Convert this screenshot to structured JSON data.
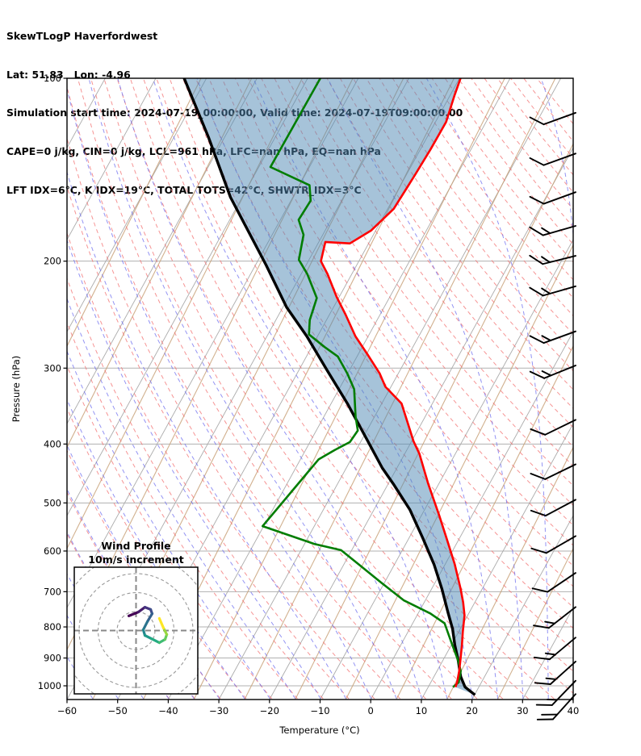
{
  "header": {
    "title": "SkewTLogP Haverfordwest",
    "lat_lon": "Lat: 51.83   Lon: -4.96",
    "times": "Simulation start time: 2024-07-19_00:00:00, Valid time: 2024-07-19T09:00:00.00",
    "indices1": "CAPE=0 j/kg, CIN=0 j/kg, LCL=961 hPa, LFC=nan hPa, EQ=nan hPa",
    "indices2": "LFT IDX=6°C, K IDX=19°C, TOTAL TOTS=42°C, SHWTR_IDX=3°C"
  },
  "chart_data": {
    "type": "skewt-logp",
    "station": "Haverfordwest",
    "xlabel": "Temperature (°C)",
    "ylabel": "Pressure (hPa)",
    "x_tick_labels": [
      "−60",
      "−50",
      "−40",
      "−30",
      "−20",
      "−10",
      "0",
      "10",
      "20",
      "30",
      "40"
    ],
    "x_tick_values": [
      -60,
      -50,
      -40,
      -30,
      -20,
      -10,
      0,
      10,
      20,
      30,
      40
    ],
    "y_tick_values": [
      100,
      200,
      300,
      400,
      500,
      600,
      700,
      800,
      900,
      1000
    ],
    "x_range_c": [
      -60,
      40
    ],
    "p_range_hpa": [
      100,
      1053
    ],
    "grid": {
      "isotherm_step_c": 10,
      "dry_adiabat_theta_k": {
        "start": 230,
        "end": 460,
        "step": 5
      },
      "moist_adiabat_t0_c": {
        "start": -60,
        "end": 45,
        "step": 5
      },
      "mixing_line_count": 13
    },
    "temperature_profile": [
      [
        100,
        -49.8
      ],
      [
        107,
        -49.1
      ],
      [
        118,
        -47.9
      ],
      [
        131,
        -48.0
      ],
      [
        145,
        -48.3
      ],
      [
        164,
        -48.8
      ],
      [
        178,
        -50.9
      ],
      [
        187,
        -53.7
      ],
      [
        186,
        -58.7
      ],
      [
        200,
        -57.5
      ],
      [
        210,
        -54.8
      ],
      [
        229,
        -50.5
      ],
      [
        245,
        -46.8
      ],
      [
        266,
        -42.5
      ],
      [
        285,
        -38.1
      ],
      [
        306,
        -33.7
      ],
      [
        322,
        -31.1
      ],
      [
        343,
        -26.1
      ],
      [
        396,
        -19.6
      ],
      [
        415,
        -17.1
      ],
      [
        465,
        -12.1
      ],
      [
        524,
        -6.5
      ],
      [
        571,
        -2.6
      ],
      [
        631,
        1.9
      ],
      [
        692,
        5.7
      ],
      [
        729,
        7.7
      ],
      [
        766,
        9.4
      ],
      [
        814,
        10.8
      ],
      [
        857,
        12.1
      ],
      [
        902,
        13.3
      ],
      [
        946,
        14.4
      ],
      [
        987,
        15.2
      ],
      [
        1005,
        15.4
      ]
    ],
    "dewpoint_profile": [
      [
        100,
        -77.5
      ],
      [
        140,
        -77.7
      ],
      [
        150,
        -68.0
      ],
      [
        159,
        -66.1
      ],
      [
        171,
        -66.4
      ],
      [
        181,
        -63.8
      ],
      [
        199,
        -62.0
      ],
      [
        210,
        -58.8
      ],
      [
        230,
        -54.3
      ],
      [
        250,
        -53.3
      ],
      [
        264,
        -51.9
      ],
      [
        277,
        -47.4
      ],
      [
        287,
        -43.8
      ],
      [
        306,
        -40.1
      ],
      [
        325,
        -37.0
      ],
      [
        361,
        -33.7
      ],
      [
        380,
        -31.8
      ],
      [
        397,
        -32.1
      ],
      [
        409,
        -34.2
      ],
      [
        424,
        -36.4
      ],
      [
        546,
        -40.2
      ],
      [
        584,
        -28.1
      ],
      [
        598,
        -22.1
      ],
      [
        631,
        -17.1
      ],
      [
        676,
        -10.7
      ],
      [
        723,
        -4.3
      ],
      [
        760,
        2.4
      ],
      [
        789,
        6.3
      ],
      [
        857,
        10.2
      ],
      [
        910,
        13.1
      ],
      [
        946,
        14.7
      ],
      [
        987,
        15.5
      ],
      [
        1005,
        14.9
      ]
    ],
    "parcel_profile": [
      [
        100,
        -104.4
      ],
      [
        125,
        -93.2
      ],
      [
        157,
        -82.3
      ],
      [
        203,
        -67.9
      ],
      [
        238,
        -59.3
      ],
      [
        266,
        -52.1
      ],
      [
        303,
        -44.3
      ],
      [
        343,
        -36.8
      ],
      [
        394,
        -28.9
      ],
      [
        438,
        -22.9
      ],
      [
        465,
        -19.0
      ],
      [
        513,
        -12.9
      ],
      [
        571,
        -7.3
      ],
      [
        631,
        -2.2
      ],
      [
        692,
        2.0
      ],
      [
        759,
        5.9
      ],
      [
        806,
        8.5
      ],
      [
        857,
        10.7
      ],
      [
        910,
        13.1
      ],
      [
        966,
        15.3
      ],
      [
        1005,
        17.3
      ],
      [
        1035,
        20.1
      ]
    ],
    "wind_barbs": [
      {
        "p": 114,
        "full": 1,
        "half": 0,
        "angle": 20
      },
      {
        "p": 133,
        "full": 1,
        "half": 0,
        "angle": 20
      },
      {
        "p": 154,
        "full": 1,
        "half": 0,
        "angle": 20
      },
      {
        "p": 175,
        "full": 1,
        "half": 1,
        "angle": 16
      },
      {
        "p": 196,
        "full": 1,
        "half": 1,
        "angle": 14
      },
      {
        "p": 220,
        "full": 1,
        "half": 1,
        "angle": 16
      },
      {
        "p": 261,
        "full": 1,
        "half": 1,
        "angle": 20
      },
      {
        "p": 297,
        "full": 1,
        "half": 1,
        "angle": 22
      },
      {
        "p": 365,
        "full": 1,
        "half": 0,
        "angle": 26
      },
      {
        "p": 432,
        "full": 1,
        "half": 0,
        "angle": 26
      },
      {
        "p": 494,
        "full": 1,
        "half": 0,
        "angle": 28
      },
      {
        "p": 567,
        "full": 1,
        "half": 0,
        "angle": 30
      },
      {
        "p": 652,
        "full": 1,
        "half": 0,
        "angle": 34
      },
      {
        "p": 742,
        "full": 1,
        "half": 1,
        "angle": 38
      },
      {
        "p": 833,
        "full": 1,
        "half": 1,
        "angle": 40
      },
      {
        "p": 912,
        "full": 1,
        "half": 1,
        "angle": 42
      },
      {
        "p": 981,
        "full": 1,
        "half": 1,
        "angle": 46
      },
      {
        "p": 1032,
        "full": 2,
        "half": 0,
        "angle": 48
      }
    ],
    "hodograph": {
      "title": "Wind Profile",
      "subtitle": "10m/s increment",
      "ring_interval_ms": 10,
      "rings_ms": [
        10,
        20,
        30,
        40
      ],
      "trace_uv_ms": [
        [
          -3.8,
          7.7
        ],
        [
          1.3,
          9.8
        ],
        [
          4.7,
          12.3
        ],
        [
          7.7,
          11.1
        ],
        [
          8.5,
          8.9
        ],
        [
          6.0,
          4.7
        ],
        [
          3.8,
          0.4
        ],
        [
          4.7,
          -2.6
        ],
        [
          8.1,
          -4.3
        ],
        [
          12.3,
          -6.4
        ],
        [
          15.3,
          -4.7
        ],
        [
          16.2,
          -2.1
        ],
        [
          14.5,
          1.3
        ],
        [
          12.3,
          6.4
        ]
      ],
      "trace_colors": [
        "#440154",
        "#471d6c",
        "#453581",
        "#3d4d8a",
        "#34618d",
        "#2b748e",
        "#24878e",
        "#1f998a",
        "#25ab82",
        "#3fbc73",
        "#67cc5c",
        "#97d83f",
        "#fde725"
      ]
    },
    "colors": {
      "temperature": "#ff0000",
      "dewpoint": "#007d00",
      "parcel": "#000000",
      "shade": "#4d87b3",
      "isotherm": "#ababab",
      "pressure_grid": "#b0b0b0",
      "dry_adiabat": "#f26b6b",
      "moist_adiabat": "#6a6aee",
      "mixing_line": "#c9a27a",
      "barb": "#000000",
      "inset_ring": "#999999",
      "inset_cross": "#888888"
    }
  }
}
